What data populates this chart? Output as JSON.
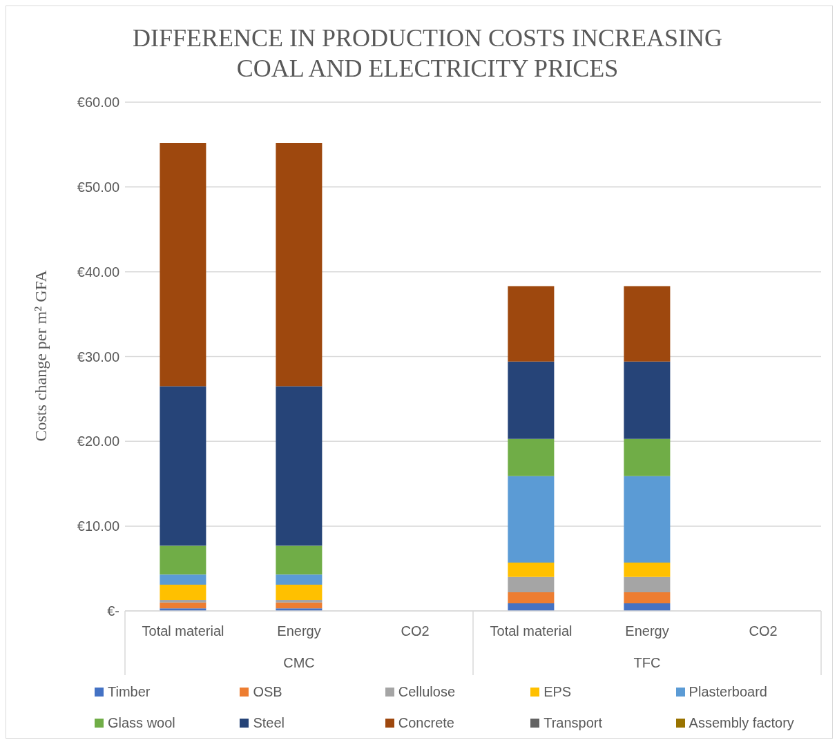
{
  "chart_data": {
    "type": "bar",
    "stacked": true,
    "title": "DIFFERENCE IN PRODUCTION COSTS INCREASING COAL AND ELECTRICITY PRICES",
    "ylabel": "Costs change per m² GFA",
    "categories": [
      "Total material",
      "Energy",
      "CO2",
      "Total material",
      "Energy",
      "CO2"
    ],
    "annotations": [
      "CMC",
      "TFC"
    ],
    "series": [
      {
        "name": "Timber",
        "color": "#4472c4",
        "values": [
          0.3,
          0.3,
          0,
          0.9,
          0.9,
          0
        ]
      },
      {
        "name": "OSB",
        "color": "#ed7d31",
        "values": [
          0.7,
          0.7,
          0,
          1.3,
          1.3,
          0
        ]
      },
      {
        "name": "Cellulose",
        "color": "#a5a5a5",
        "values": [
          0.3,
          0.3,
          0,
          1.8,
          1.8,
          0
        ]
      },
      {
        "name": "EPS",
        "color": "#ffc000",
        "values": [
          1.8,
          1.8,
          0,
          1.7,
          1.7,
          0
        ]
      },
      {
        "name": "Plasterboard",
        "color": "#5b9bd5",
        "values": [
          1.2,
          1.2,
          0,
          10.2,
          10.2,
          0
        ]
      },
      {
        "name": "Glass wool",
        "color": "#70ad47",
        "values": [
          3.4,
          3.4,
          0,
          4.4,
          4.4,
          0
        ]
      },
      {
        "name": "Steel",
        "color": "#264478",
        "values": [
          18.8,
          18.8,
          0,
          9.1,
          9.1,
          0
        ]
      },
      {
        "name": "Concrete",
        "color": "#9e480e",
        "values": [
          28.7,
          28.7,
          0,
          8.9,
          8.9,
          0
        ]
      },
      {
        "name": "Transport",
        "color": "#636363",
        "values": [
          0,
          0,
          0,
          0,
          0,
          0
        ]
      },
      {
        "name": "Assembly factory",
        "color": "#997300",
        "values": [
          0,
          0,
          0,
          0,
          0,
          0
        ]
      }
    ],
    "ylim": [
      0,
      60
    ],
    "yticks": [
      {
        "value": 0,
        "label": "€-"
      },
      {
        "value": 10,
        "label": "€10.00"
      },
      {
        "value": 20,
        "label": "€20.00"
      },
      {
        "value": 30,
        "label": "€30.00"
      },
      {
        "value": 40,
        "label": "€40.00"
      },
      {
        "value": 50,
        "label": "€50.00"
      },
      {
        "value": 60,
        "label": "€60.00"
      }
    ],
    "grid": "y",
    "legend": "bottom"
  }
}
